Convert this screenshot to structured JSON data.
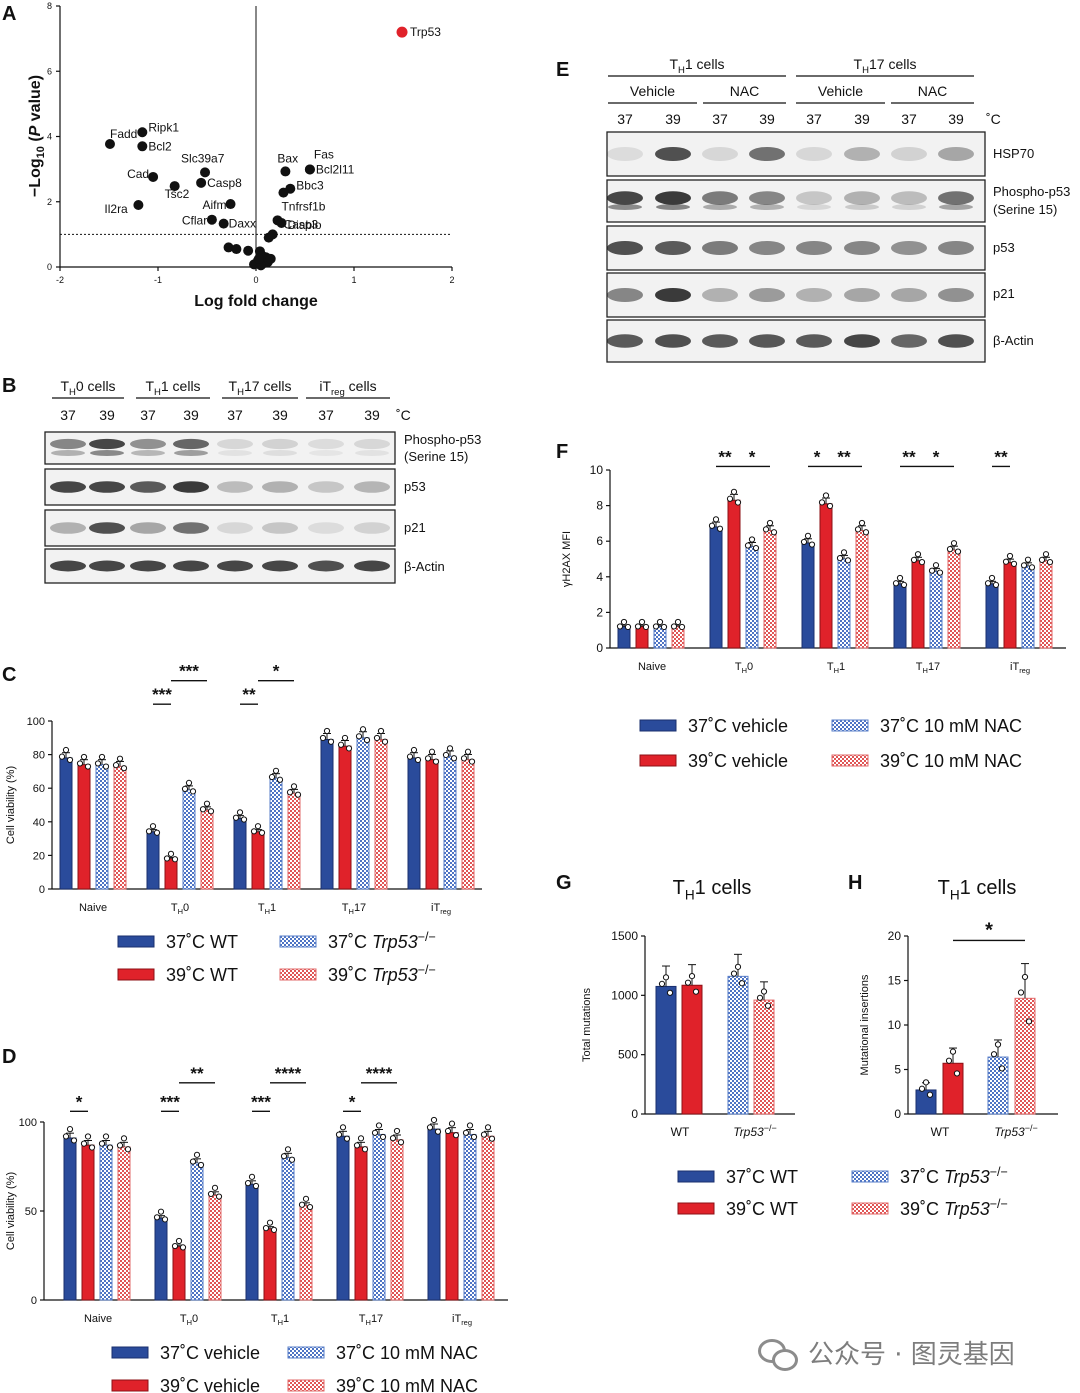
{
  "colors": {
    "blue": "#2a4b9b",
    "red": "#e0222a",
    "blue_pat": "#5a7fc8",
    "red_pat": "#e26a6a",
    "black": "#111111"
  },
  "panelA": {
    "letter": "A",
    "xlabel": "Log fold change",
    "ylabel_pre": "−Log",
    "ylabel_sub": "10",
    "ylabel_open": " (",
    "ylabel_P": "P",
    "ylabel_post": " value)",
    "xticks": [
      "-2",
      "-1",
      "0",
      "1",
      "2"
    ],
    "yticks": [
      "0",
      "2",
      "4",
      "6",
      "8"
    ],
    "highlight": {
      "label": "Trp53",
      "x": 1.49,
      "y": 7.2
    },
    "labeled": [
      {
        "label": "Fadd",
        "x": -1.49,
        "y": 3.77
      },
      {
        "label": "Ripk1",
        "x": -1.16,
        "y": 4.13
      },
      {
        "label": "Bcl2",
        "x": -1.16,
        "y": 3.7
      },
      {
        "label": "Cad",
        "x": -1.05,
        "y": 2.76
      },
      {
        "label": "Slc39a7",
        "x": -0.52,
        "y": 2.9
      },
      {
        "label": "Tsc2",
        "x": -0.83,
        "y": 2.48
      },
      {
        "label": "Casp8",
        "x": -0.56,
        "y": 2.58
      },
      {
        "label": "Il2ra",
        "x": -1.2,
        "y": 1.9
      },
      {
        "label": "Aifm",
        "x": -0.26,
        "y": 1.93
      },
      {
        "label": "Cflar",
        "x": -0.45,
        "y": 1.45
      },
      {
        "label": "Daxx",
        "x": -0.33,
        "y": 1.33
      },
      {
        "label": "Bax",
        "x": 0.3,
        "y": 2.93
      },
      {
        "label": "Fas",
        "x": 0.55,
        "y": 2.99
      },
      {
        "label": "Bcl2l11",
        "x": 0.55,
        "y": 2.99
      },
      {
        "label": "Bbc3",
        "x": 0.35,
        "y": 2.4
      },
      {
        "label": "Tnfrsf1b",
        "x": 0.28,
        "y": 2.28
      },
      {
        "label": "Casp3",
        "x": 0.22,
        "y": 1.43
      },
      {
        "label": "Diablo",
        "x": 0.26,
        "y": 1.35
      }
    ],
    "others": [
      [
        -0.28,
        0.6
      ],
      [
        -0.2,
        0.55
      ],
      [
        -0.08,
        0.5
      ],
      [
        0.04,
        0.48
      ],
      [
        0.06,
        0.35
      ],
      [
        0.1,
        0.3
      ],
      [
        0.13,
        0.9
      ],
      [
        0.17,
        1.0
      ],
      [
        0.02,
        0.2
      ],
      [
        0.08,
        0.12
      ],
      [
        0.12,
        0.15
      ],
      [
        0.15,
        0.25
      ],
      [
        -0.02,
        0.08
      ],
      [
        0.0,
        0.1
      ],
      [
        0.05,
        0.05
      ],
      [
        0.03,
        0.25
      ]
    ],
    "threshold": 1.0,
    "xlim": [
      -2,
      2
    ],
    "ylim": [
      0,
      8
    ]
  },
  "panelB": {
    "letter": "B",
    "groups": [
      {
        "pre": "T",
        "sub": "H",
        "post": "0 cells"
      },
      {
        "pre": "T",
        "sub": "H",
        "post": "1 cells"
      },
      {
        "pre": "T",
        "sub": "H",
        "post": "17 cells"
      },
      {
        "pre": "iT",
        "sub": "reg",
        "post": " cells"
      }
    ],
    "temps": [
      "37",
      "39",
      "37",
      "39",
      "37",
      "39",
      "37",
      "39"
    ],
    "unit": "˚C",
    "rows": [
      {
        "label": "Phospho-p53",
        "label2": "(Serine 15)"
      },
      {
        "label": "p53"
      },
      {
        "label": "p21"
      },
      {
        "label": "β-Actin"
      }
    ]
  },
  "panelE": {
    "letter": "E",
    "groups": [
      {
        "pre": "T",
        "sub": "H",
        "post": "1 cells"
      },
      {
        "pre": "T",
        "sub": "H",
        "post": "17 cells"
      }
    ],
    "sub_groups": [
      "Vehicle",
      "NAC",
      "Vehicle",
      "NAC"
    ],
    "temps": [
      "37",
      "39",
      "37",
      "39",
      "37",
      "39",
      "37",
      "39"
    ],
    "unit": "˚C",
    "rows": [
      {
        "label": "HSP70"
      },
      {
        "label": "Phospho-p53",
        "label2": "(Serine 15)"
      },
      {
        "label": "p53"
      },
      {
        "label": "p21"
      },
      {
        "label": "β-Actin"
      }
    ]
  },
  "chart_data": [
    {
      "panel": "C",
      "type": "bar",
      "ylabel": "Cell viability (%)",
      "ylim": [
        0,
        100
      ],
      "yticks": [
        0,
        20,
        40,
        60,
        80,
        100
      ],
      "categories": [
        {
          "pre": "Naive",
          "sub": "",
          "post": ""
        },
        {
          "pre": "T",
          "sub": "H",
          "post": "0"
        },
        {
          "pre": "T",
          "sub": "H",
          "post": "1"
        },
        {
          "pre": "T",
          "sub": "H",
          "post": "17"
        },
        {
          "pre": "iT",
          "sub": "reg",
          "post": ""
        }
      ],
      "series": [
        {
          "name": "37˚C WT",
          "values": [
            78,
            34,
            42,
            89,
            78
          ]
        },
        {
          "name": "39˚C WT",
          "values": [
            74,
            18,
            34,
            85,
            77
          ]
        },
        {
          "name": "37˚C Trp53−/−",
          "values": [
            74,
            59,
            66,
            90,
            79
          ]
        },
        {
          "name": "39˚C Trp53−/−",
          "values": [
            73,
            47,
            57,
            89,
            77
          ]
        }
      ],
      "sig": [
        {
          "label": "***",
          "cat": 1,
          "from": 0,
          "to": 1,
          "y": 110
        },
        {
          "label": "***",
          "cat": 1,
          "from": 1,
          "to": 3,
          "y": 124
        },
        {
          "label": "**",
          "cat": 2,
          "from": 0,
          "to": 1,
          "y": 110
        },
        {
          "label": "*",
          "cat": 2,
          "from": 1,
          "to": 3,
          "y": 124
        }
      ]
    },
    {
      "panel": "D",
      "type": "bar",
      "ylabel": "Cell viability (%)",
      "ylim": [
        0,
        100
      ],
      "yticks": [
        0,
        50,
        100
      ],
      "categories": [
        {
          "pre": "Naive",
          "sub": "",
          "post": ""
        },
        {
          "pre": "T",
          "sub": "H",
          "post": "0"
        },
        {
          "pre": "T",
          "sub": "H",
          "post": "1"
        },
        {
          "pre": "T",
          "sub": "H",
          "post": "17"
        },
        {
          "pre": "iT",
          "sub": "reg",
          "post": ""
        }
      ],
      "series": [
        {
          "name": "37˚C vehicle",
          "values": [
            91,
            46,
            65,
            92,
            96
          ]
        },
        {
          "name": "39˚C vehicle",
          "values": [
            87,
            30,
            40,
            86,
            94
          ]
        },
        {
          "name": "37˚C 10 mM NAC",
          "values": [
            87,
            77,
            80,
            93,
            93
          ]
        },
        {
          "name": "39˚C 10 mM NAC",
          "values": [
            86,
            59,
            53,
            90,
            92
          ]
        }
      ],
      "sig": [
        {
          "label": "*",
          "cat": 0,
          "from": 0,
          "to": 1,
          "y": 106
        },
        {
          "label": "***",
          "cat": 1,
          "from": 0,
          "to": 1,
          "y": 106
        },
        {
          "label": "**",
          "cat": 1,
          "from": 1,
          "to": 3,
          "y": 122
        },
        {
          "label": "***",
          "cat": 2,
          "from": 0,
          "to": 1,
          "y": 106
        },
        {
          "label": "****",
          "cat": 2,
          "from": 1,
          "to": 3,
          "y": 122
        },
        {
          "label": "*",
          "cat": 3,
          "from": 0,
          "to": 1,
          "y": 106
        },
        {
          "label": "****",
          "cat": 3,
          "from": 1,
          "to": 3,
          "y": 122
        }
      ]
    },
    {
      "panel": "F",
      "type": "bar",
      "ylabel": "γH2AX MFI",
      "ylim": [
        0,
        10
      ],
      "yticks": [
        0,
        2,
        4,
        6,
        8,
        10
      ],
      "categories": [
        {
          "pre": "Naive",
          "sub": "",
          "post": ""
        },
        {
          "pre": "T",
          "sub": "H",
          "post": "0"
        },
        {
          "pre": "T",
          "sub": "H",
          "post": "1"
        },
        {
          "pre": "T",
          "sub": "H",
          "post": "17"
        },
        {
          "pre": "iT",
          "sub": "reg",
          "post": ""
        }
      ],
      "series": [
        {
          "name": "37˚C vehicle",
          "values": [
            1.2,
            6.8,
            5.9,
            3.6,
            3.6
          ]
        },
        {
          "name": "39˚C vehicle",
          "values": [
            1.2,
            8.3,
            8.1,
            4.9,
            4.8
          ]
        },
        {
          "name": "37˚C 10 mM NAC",
          "values": [
            1.2,
            5.7,
            5.0,
            4.3,
            4.6
          ]
        },
        {
          "name": "39˚C 10 mM NAC",
          "values": [
            1.2,
            6.6,
            6.6,
            5.5,
            4.9
          ]
        }
      ],
      "sig": [
        {
          "label": "**",
          "cat": 1,
          "from": 0,
          "to": 1,
          "y": 10.2
        },
        {
          "label": "*",
          "cat": 1,
          "from": 1,
          "to": 3,
          "y": 10.2
        },
        {
          "label": "*",
          "cat": 2,
          "from": 0,
          "to": 1,
          "y": 10.2
        },
        {
          "label": "**",
          "cat": 2,
          "from": 1,
          "to": 3,
          "y": 10.2
        },
        {
          "label": "**",
          "cat": 3,
          "from": 0,
          "to": 1,
          "y": 10.2
        },
        {
          "label": "*",
          "cat": 3,
          "from": 1,
          "to": 3,
          "y": 10.2
        },
        {
          "label": "**",
          "cat": 4,
          "from": 0,
          "to": 1,
          "y": 10.2
        }
      ]
    },
    {
      "panel": "G",
      "type": "bar",
      "title_pre": "T",
      "title_sub": "H",
      "title_post": "1 cells",
      "ylabel": "Total mutations",
      "ylim": [
        0,
        1500
      ],
      "yticks": [
        0,
        500,
        1000,
        1500
      ],
      "categories": [
        {
          "pre": "WT",
          "sub": "",
          "post": "",
          "italic": false
        },
        {
          "pre": "Trp53",
          "sub": "",
          "post": "−/−",
          "italic": true
        }
      ],
      "bars": [
        {
          "cat": 0,
          "series": 0,
          "value": 1075
        },
        {
          "cat": 0,
          "series": 1,
          "value": 1085
        },
        {
          "cat": 1,
          "series": 2,
          "value": 1160
        },
        {
          "cat": 1,
          "series": 3,
          "value": 960
        }
      ],
      "sig": []
    },
    {
      "panel": "H",
      "type": "bar",
      "title_pre": "T",
      "title_sub": "H",
      "title_post": "1 cells",
      "ylabel": "Mutational insertions",
      "ylim": [
        0,
        20
      ],
      "yticks": [
        0,
        5,
        10,
        15,
        20
      ],
      "categories": [
        {
          "pre": "WT",
          "sub": "",
          "post": "",
          "italic": false
        },
        {
          "pre": "Trp53",
          "sub": "",
          "post": "−/−",
          "italic": true
        }
      ],
      "bars": [
        {
          "cat": 0,
          "series": 0,
          "value": 2.7
        },
        {
          "cat": 0,
          "series": 1,
          "value": 5.7
        },
        {
          "cat": 1,
          "series": 2,
          "value": 6.4
        },
        {
          "cat": 1,
          "series": 3,
          "value": 13.0
        }
      ],
      "sig": [
        {
          "label": "*",
          "from": 1,
          "to": 3,
          "y": 19.5
        }
      ]
    }
  ],
  "legends": {
    "C": [
      {
        "name": "37˚C WT"
      },
      {
        "name": "39˚C WT"
      },
      {
        "pre": "37˚C ",
        "it": "Trp53",
        "sup": "−/−"
      },
      {
        "pre": "39˚C ",
        "it": "Trp53",
        "sup": "−/−"
      }
    ],
    "D": [
      {
        "name": "37˚C vehicle"
      },
      {
        "name": "39˚C vehicle"
      },
      {
        "name": "37˚C 10 mM NAC"
      },
      {
        "name": "39˚C 10 mM NAC"
      }
    ],
    "F": [
      {
        "name": "37˚C vehicle"
      },
      {
        "name": "39˚C vehicle"
      },
      {
        "name": "37˚C 10 mM NAC"
      },
      {
        "name": "39˚C 10 mM NAC"
      }
    ],
    "G": [
      {
        "name": "37˚C WT"
      },
      {
        "name": "39˚C WT"
      },
      {
        "pre": "37˚C ",
        "it": "Trp53",
        "sup": "−/−"
      },
      {
        "pre": "39˚C ",
        "it": "Trp53",
        "sup": "−/−"
      }
    ]
  },
  "watermark": {
    "text": "公众号 · 图灵基因",
    "icon": "wechat-icon"
  }
}
